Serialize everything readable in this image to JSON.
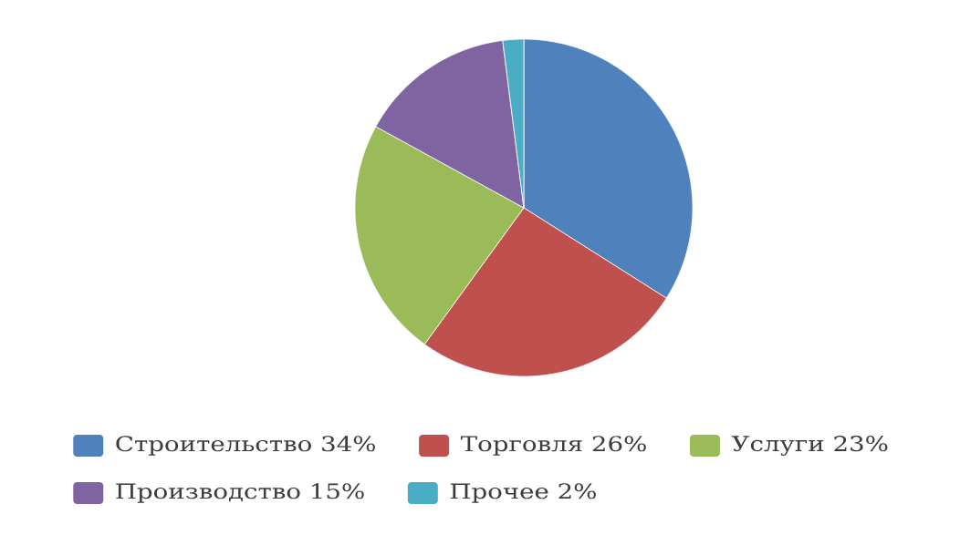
{
  "chart_data": {
    "type": "pie",
    "categories": [
      "Строительство 34%",
      "Торговля 26%",
      "Услуги 23%",
      "Производство 15%",
      "Прочее 2%"
    ],
    "values": [
      34,
      26,
      23,
      15,
      2
    ],
    "colors": [
      "#4f81bd",
      "#c0504d",
      "#9bbb59",
      "#8064a2",
      "#4bacc6"
    ],
    "legend": "bottom"
  }
}
